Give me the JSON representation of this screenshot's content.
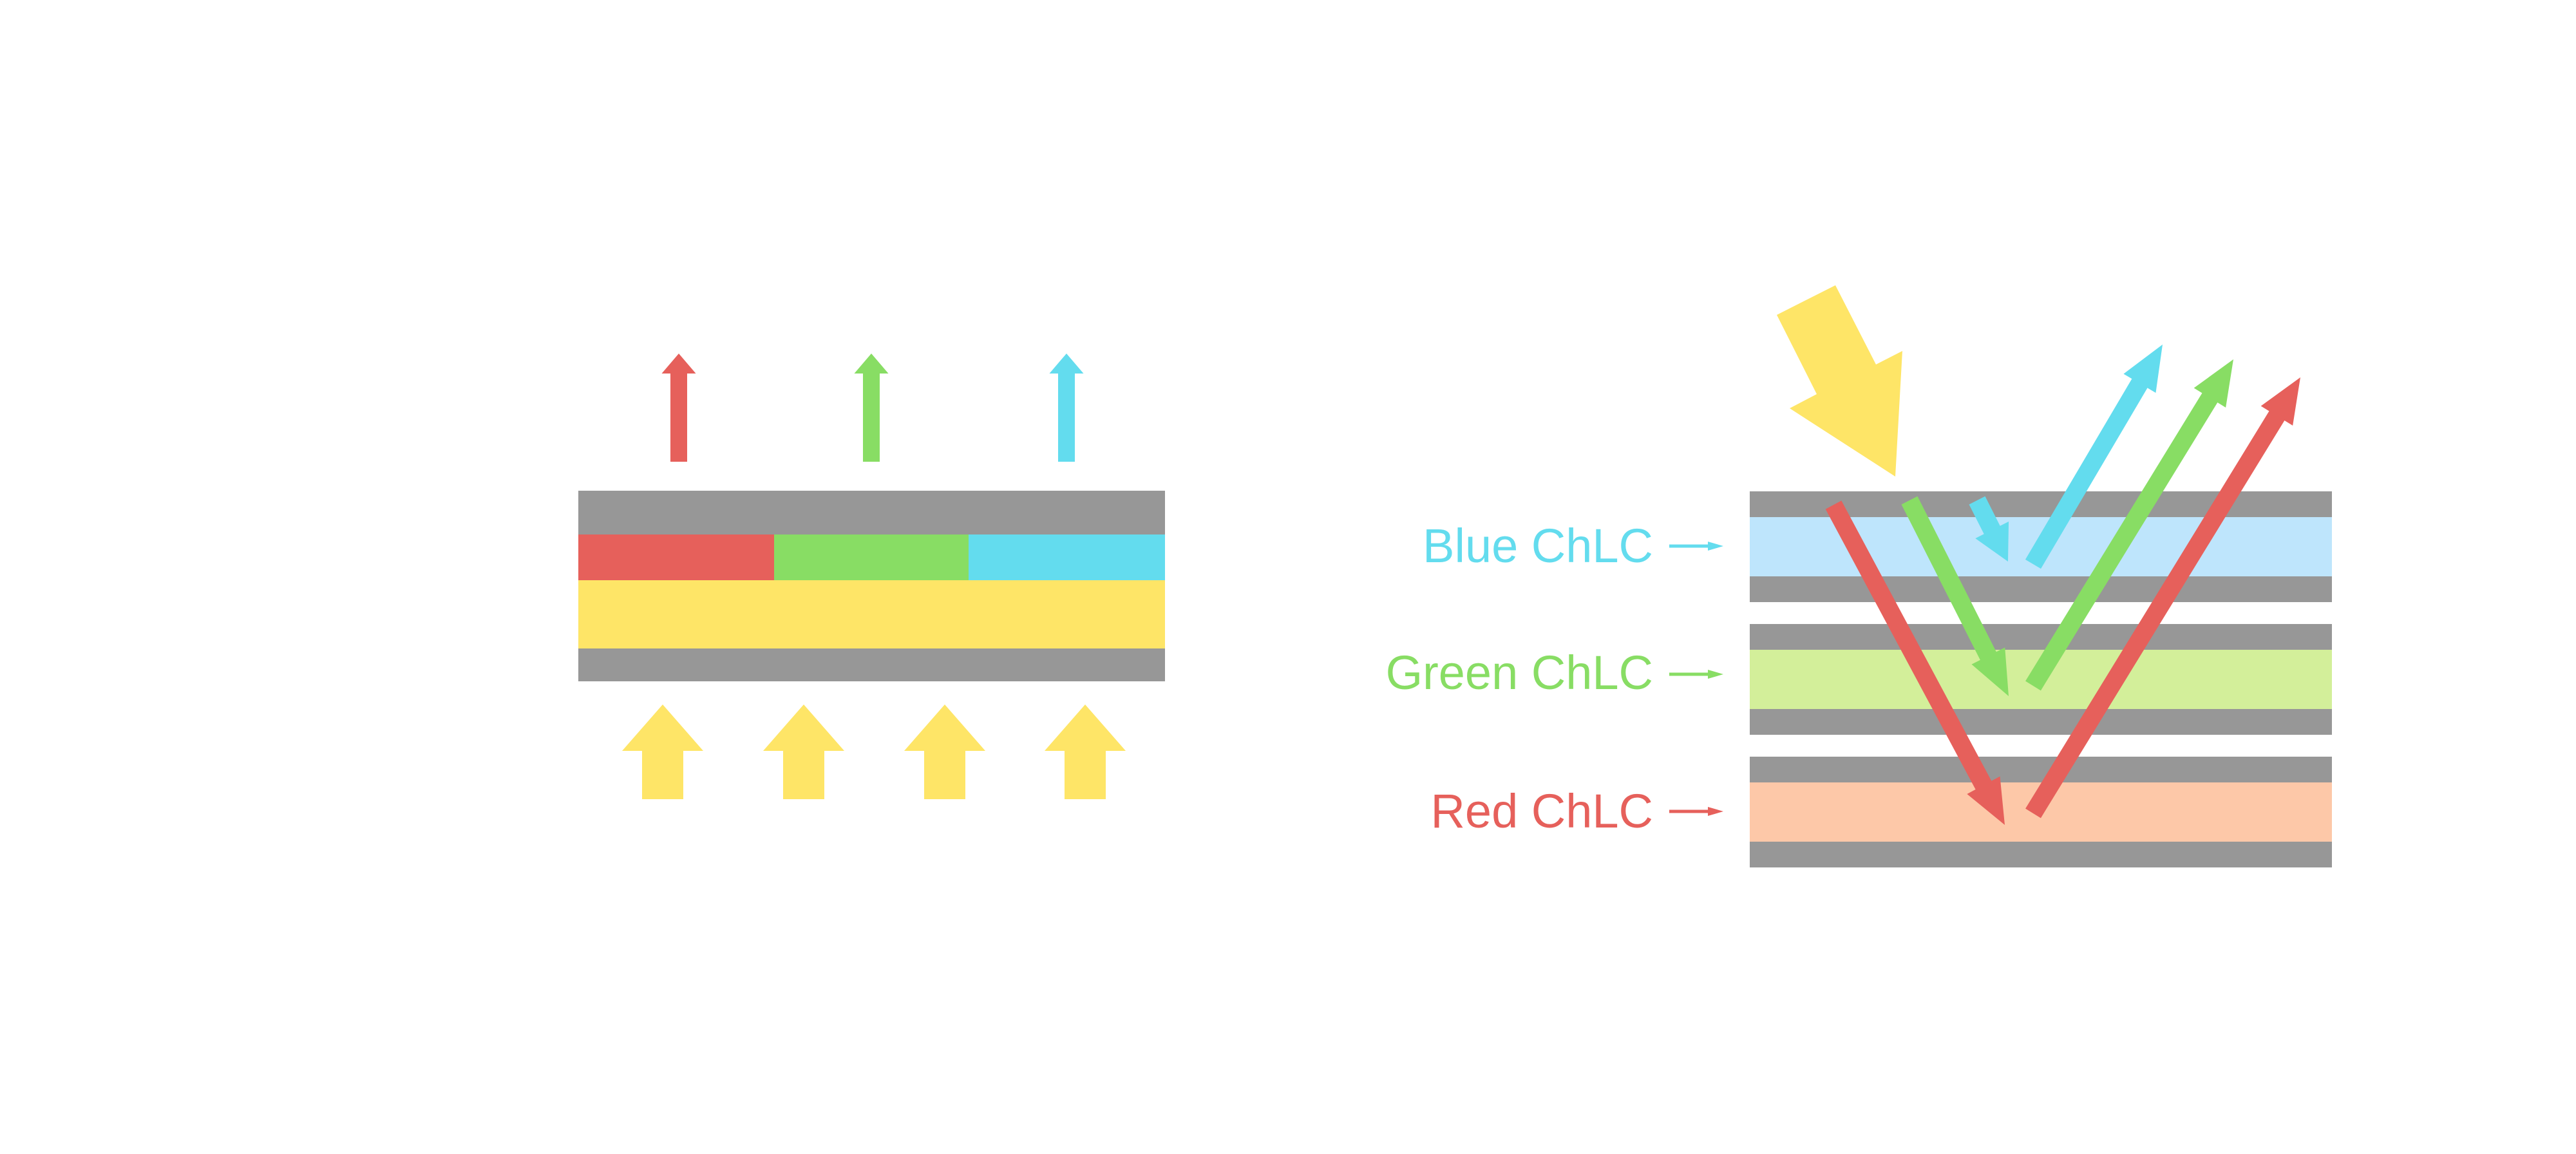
{
  "colors": {
    "red": "#E6605B",
    "green": "#88DD64",
    "cyan": "#63DCEE",
    "yellow": "#FEE567",
    "gray": "#979797",
    "blue_layer": "#BEE5FC",
    "green_layer": "#D3EF9A",
    "red_layer": "#FDC8A8"
  },
  "right_diagram": {
    "labels": {
      "blue": "Blue ChLC",
      "green": "Green ChLC",
      "red": "Red ChLC"
    }
  }
}
